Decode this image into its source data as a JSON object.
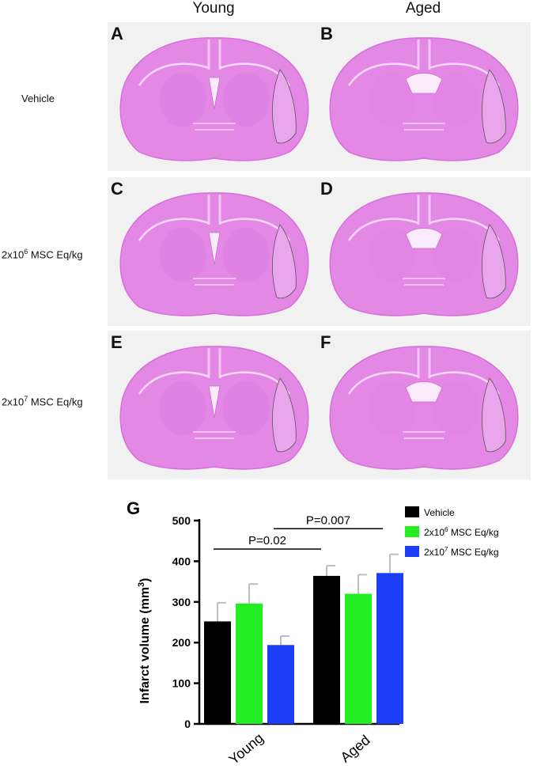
{
  "columns": [
    "Young",
    "Aged"
  ],
  "rows": [
    {
      "base": "Vehicle",
      "exp": "",
      "unit": ""
    },
    {
      "base": "2x10",
      "exp": "6",
      "unit": " MSC Eq/kg"
    },
    {
      "base": "2x10",
      "exp": "7",
      "unit": " MSC Eq/kg"
    }
  ],
  "panels": [
    "A",
    "B",
    "C",
    "D",
    "E",
    "F"
  ],
  "colors": {
    "stain": "#e488e6",
    "stain_dark": "#d66fd8",
    "panel_bg": "#f1f1f1",
    "vehicle": "#000000",
    "low_dose": "#22ee22",
    "high_dose": "#1c3ff5"
  },
  "chart_data": {
    "type": "bar",
    "panel_label": "G",
    "categories": [
      "Young",
      "Aged"
    ],
    "ylabel": "Infarct volume (mm",
    "ylabel_sup": "3",
    "ylabel_close": ")",
    "ylim": [
      0,
      500
    ],
    "yticks": [
      0,
      100,
      200,
      300,
      400,
      500
    ],
    "series": [
      {
        "name": "Vehicle",
        "name_base": "Vehicle",
        "name_exp": "",
        "name_unit": "",
        "color": "#000000",
        "values": [
          252,
          364
        ],
        "errors": [
          46,
          25
        ]
      },
      {
        "name": "2x10^6 MSC Eq/kg",
        "name_base": "2x10",
        "name_exp": "6",
        "name_unit": " MSC Eq/kg",
        "color": "#22ee22",
        "values": [
          296,
          320
        ],
        "errors": [
          48,
          47
        ]
      },
      {
        "name": "2x10^7 MSC Eq/kg",
        "name_base": "2x10",
        "name_exp": "7",
        "name_unit": " MSC Eq/kg",
        "color": "#1c3ff5",
        "values": [
          194,
          371
        ],
        "errors": [
          22,
          46
        ]
      }
    ],
    "annotations": [
      {
        "text": "P=0.02",
        "from_category": 0,
        "to_category": 1,
        "level": 430
      },
      {
        "text": "P=0.007",
        "from_category": 0,
        "to_category": 1,
        "level": 480
      }
    ],
    "legend_position": "top-right"
  }
}
